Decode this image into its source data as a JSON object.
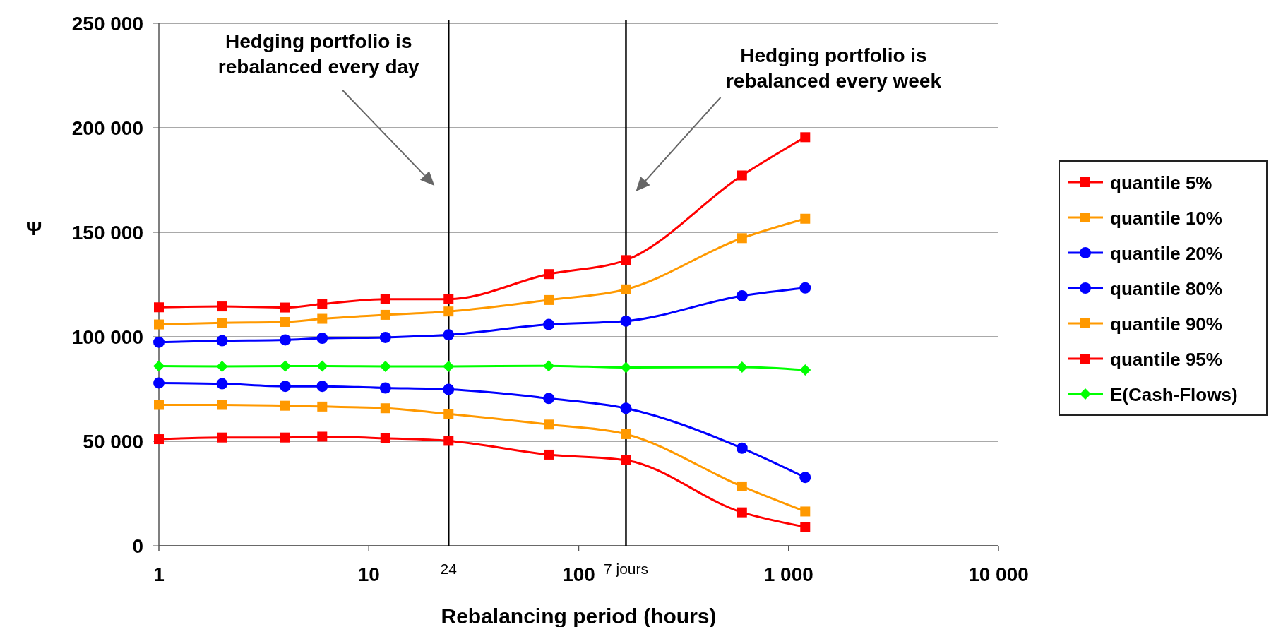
{
  "chart_data": {
    "type": "line",
    "xlabel": "Rebalancing period (hours)",
    "ylabel": "Ψ",
    "log": "x",
    "grid": "y",
    "legend": "right",
    "line_style": "solid",
    "xlim": [
      1,
      10000
    ],
    "xticks": [
      1,
      10,
      100,
      {
        "value": 1000,
        "label": "1 000"
      },
      {
        "value": 10000,
        "label": "10 000"
      }
    ],
    "ylim": [
      0,
      250000
    ],
    "yticks": [
      {
        "value": 0,
        "label": "0"
      },
      {
        "value": 50000,
        "label": "50 000"
      },
      {
        "value": 100000,
        "label": "100 000"
      },
      {
        "value": 150000,
        "label": "150 000"
      },
      {
        "value": 200000,
        "label": "200 000"
      },
      {
        "value": 250000,
        "label": "250 000"
      }
    ],
    "x": [
      1,
      2,
      4,
      6,
      12,
      24,
      72,
      168,
      600,
      1200
    ],
    "series": [
      {
        "name": "quantile 5%",
        "color": "#ff0000",
        "marker": "square",
        "values": [
          114100,
          114500,
          114000,
          115700,
          118000,
          118000,
          130000,
          136700,
          177200,
          195500
        ]
      },
      {
        "name": "quantile 10%",
        "color": "#ff9900",
        "marker": "square",
        "values": [
          105900,
          106700,
          107100,
          108600,
          110500,
          112100,
          117600,
          122700,
          147200,
          156500
        ]
      },
      {
        "name": "quantile 20%",
        "color": "#0000ff",
        "marker": "circle",
        "values": [
          97400,
          98100,
          98500,
          99300,
          99700,
          100900,
          105900,
          107500,
          119600,
          123400
        ]
      },
      {
        "name": "quantile 80%",
        "color": "#0000ff",
        "marker": "circle",
        "values": [
          77900,
          77500,
          76300,
          76300,
          75500,
          74800,
          70500,
          65800,
          46700,
          32700
        ]
      },
      {
        "name": "quantile 90%",
        "color": "#ff9900",
        "marker": "square",
        "values": [
          67400,
          67400,
          67000,
          66600,
          65800,
          63100,
          58000,
          53400,
          28400,
          16400
        ]
      },
      {
        "name": "quantile 95%",
        "color": "#ff0000",
        "marker": "square",
        "values": [
          51000,
          51800,
          51800,
          52200,
          51400,
          50200,
          43600,
          40900,
          16000,
          9000
        ]
      },
      {
        "name": "E(Cash-Flows)",
        "color": "#00ff00",
        "marker": "diamond",
        "values": [
          86000,
          85800,
          86000,
          86000,
          85800,
          85800,
          86100,
          85300,
          85500,
          84100
        ]
      }
    ],
    "ref_lines": [
      {
        "axis": "x",
        "value": 24,
        "label": "24",
        "color": "#000000"
      },
      {
        "axis": "x",
        "value": 168,
        "label": "7 jours",
        "color": "#000000"
      }
    ],
    "annotations": [
      "Hedging portfolio is\nrebalanced every day",
      "Hedging portfolio is\nrebalanced every week"
    ]
  }
}
